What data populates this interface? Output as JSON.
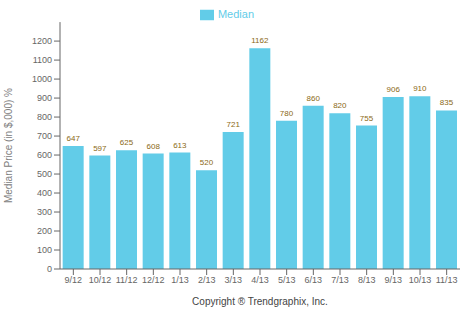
{
  "chart_data": {
    "type": "bar",
    "categories": [
      "9/12",
      "10/12",
      "11/12",
      "12/12",
      "1/13",
      "2/13",
      "3/13",
      "4/13",
      "5/13",
      "6/13",
      "7/13",
      "8/13",
      "9/13",
      "10/13",
      "11/13"
    ],
    "series": [
      {
        "name": "Median",
        "color": "#62cce8",
        "values": [
          647,
          597,
          625,
          608,
          613,
          520,
          721,
          1162,
          780,
          860,
          820,
          755,
          906,
          910,
          835
        ]
      }
    ],
    "ylabel": "Median Price (in $,000) %",
    "xlabel": "Copyright ® Trendgraphix, Inc.",
    "ylim": [
      0,
      1300
    ],
    "yticks": [
      0,
      100,
      200,
      300,
      400,
      500,
      600,
      700,
      800,
      900,
      1000,
      1100,
      1200
    ],
    "data_labels": true,
    "legend": "top",
    "grid": false
  }
}
